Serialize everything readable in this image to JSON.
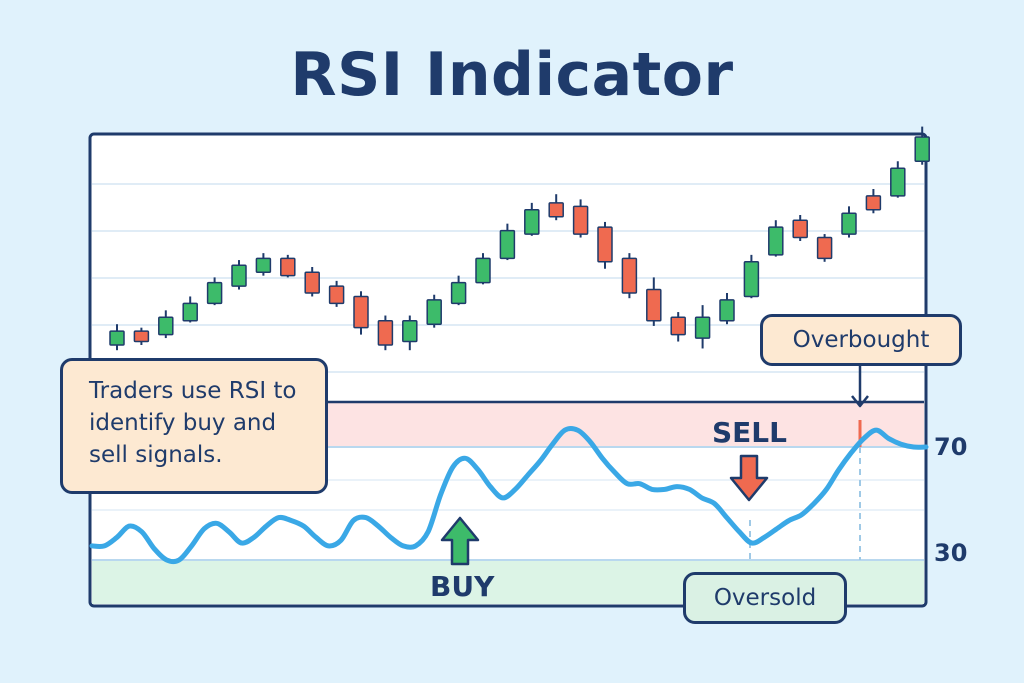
{
  "title": "RSI Indicator",
  "note": "Traders use RSI to identify buy and sell signals.",
  "labels": {
    "overbought": "Overbought",
    "oversold": "Oversold",
    "buy": "BUY",
    "sell": "SELL",
    "level_70": "70",
    "level_30": "30"
  },
  "colors": {
    "up": "#3dbb6a",
    "down": "#ef6a50",
    "rsi_line": "#3aa8e6",
    "overbought_zone": "#fde3e3",
    "oversold_zone": "#dcf4e6",
    "ink": "#1f3b6b"
  },
  "chart_data": [
    {
      "type": "candlestick",
      "candles": [
        {
          "o": 43.0,
          "c": 47.0,
          "h": 49.0,
          "l": 41.5,
          "dir": "up"
        },
        {
          "o": 47.0,
          "c": 44.0,
          "h": 48.0,
          "l": 43.0,
          "dir": "down"
        },
        {
          "o": 46.0,
          "c": 51.0,
          "h": 53.0,
          "l": 45.0,
          "dir": "up"
        },
        {
          "o": 50.0,
          "c": 55.0,
          "h": 57.0,
          "l": 49.5,
          "dir": "up"
        },
        {
          "o": 55.0,
          "c": 61.0,
          "h": 62.5,
          "l": 54.5,
          "dir": "up"
        },
        {
          "o": 60.0,
          "c": 66.0,
          "h": 67.5,
          "l": 59.0,
          "dir": "up"
        },
        {
          "o": 64.0,
          "c": 68.0,
          "h": 69.5,
          "l": 63.0,
          "dir": "up"
        },
        {
          "o": 68.0,
          "c": 63.0,
          "h": 69.0,
          "l": 62.5,
          "dir": "down"
        },
        {
          "o": 64.0,
          "c": 58.0,
          "h": 65.5,
          "l": 57.0,
          "dir": "down"
        },
        {
          "o": 60.0,
          "c": 55.0,
          "h": 61.5,
          "l": 54.0,
          "dir": "down"
        },
        {
          "o": 57.0,
          "c": 48.0,
          "h": 58.5,
          "l": 46.0,
          "dir": "down"
        },
        {
          "o": 50.0,
          "c": 43.0,
          "h": 51.5,
          "l": 41.5,
          "dir": "down"
        },
        {
          "o": 44.0,
          "c": 50.0,
          "h": 51.5,
          "l": 41.5,
          "dir": "up"
        },
        {
          "o": 49.0,
          "c": 56.0,
          "h": 57.5,
          "l": 48.0,
          "dir": "up"
        },
        {
          "o": 55.0,
          "c": 61.0,
          "h": 63.0,
          "l": 54.5,
          "dir": "up"
        },
        {
          "o": 61.0,
          "c": 68.0,
          "h": 69.5,
          "l": 60.5,
          "dir": "up"
        },
        {
          "o": 68.0,
          "c": 76.0,
          "h": 78.0,
          "l": 67.5,
          "dir": "up"
        },
        {
          "o": 75.0,
          "c": 82.0,
          "h": 84.0,
          "l": 74.5,
          "dir": "up"
        },
        {
          "o": 84.0,
          "c": 80.0,
          "h": 86.5,
          "l": 79.0,
          "dir": "down"
        },
        {
          "o": 83.0,
          "c": 75.0,
          "h": 85.0,
          "l": 74.0,
          "dir": "down"
        },
        {
          "o": 77.0,
          "c": 67.0,
          "h": 78.5,
          "l": 65.0,
          "dir": "down"
        },
        {
          "o": 68.0,
          "c": 58.0,
          "h": 69.5,
          "l": 56.5,
          "dir": "down"
        },
        {
          "o": 59.0,
          "c": 50.0,
          "h": 62.5,
          "l": 48.5,
          "dir": "down"
        },
        {
          "o": 51.0,
          "c": 46.0,
          "h": 52.5,
          "l": 44.0,
          "dir": "down"
        },
        {
          "o": 45.0,
          "c": 51.0,
          "h": 54.5,
          "l": 42.0,
          "dir": "up"
        },
        {
          "o": 50.0,
          "c": 56.0,
          "h": 58.0,
          "l": 49.0,
          "dir": "up"
        },
        {
          "o": 57.0,
          "c": 67.0,
          "h": 69.0,
          "l": 56.5,
          "dir": "up"
        },
        {
          "o": 69.0,
          "c": 77.0,
          "h": 79.0,
          "l": 68.5,
          "dir": "up"
        },
        {
          "o": 79.0,
          "c": 74.0,
          "h": 80.5,
          "l": 73.0,
          "dir": "down"
        },
        {
          "o": 74.0,
          "c": 68.0,
          "h": 75.0,
          "l": 67.0,
          "dir": "down"
        },
        {
          "o": 75.0,
          "c": 81.0,
          "h": 83.0,
          "l": 74.0,
          "dir": "up"
        },
        {
          "o": 86.0,
          "c": 82.0,
          "h": 88.0,
          "l": 81.0,
          "dir": "down"
        },
        {
          "o": 86.0,
          "c": 94.0,
          "h": 96.0,
          "l": 85.5,
          "dir": "up"
        },
        {
          "o": 96.0,
          "c": 103.0,
          "h": 106.0,
          "l": 95.0,
          "dir": "up"
        }
      ]
    },
    {
      "type": "line",
      "name": "RSI",
      "ylim": [
        0,
        100
      ],
      "levels": [
        70,
        30
      ],
      "values": [
        35,
        35,
        38,
        42,
        40,
        34,
        30,
        30,
        35,
        41,
        43,
        40,
        36,
        38,
        42,
        45,
        44,
        42,
        38,
        35,
        37,
        44,
        45,
        42,
        38,
        35,
        35,
        40,
        53,
        63,
        66,
        62,
        56,
        52,
        55,
        60,
        65,
        71,
        76,
        76,
        72,
        66,
        61,
        57,
        57,
        55,
        55,
        56,
        55,
        52,
        50,
        45,
        40,
        36,
        38,
        41,
        44,
        46,
        50,
        55,
        62,
        68,
        73,
        76,
        73,
        71,
        70,
        70
      ],
      "signals": [
        {
          "label": "BUY",
          "index": 21
        },
        {
          "label": "SELL",
          "index": 55
        },
        {
          "label": "Overbought",
          "index": 63
        }
      ]
    }
  ]
}
